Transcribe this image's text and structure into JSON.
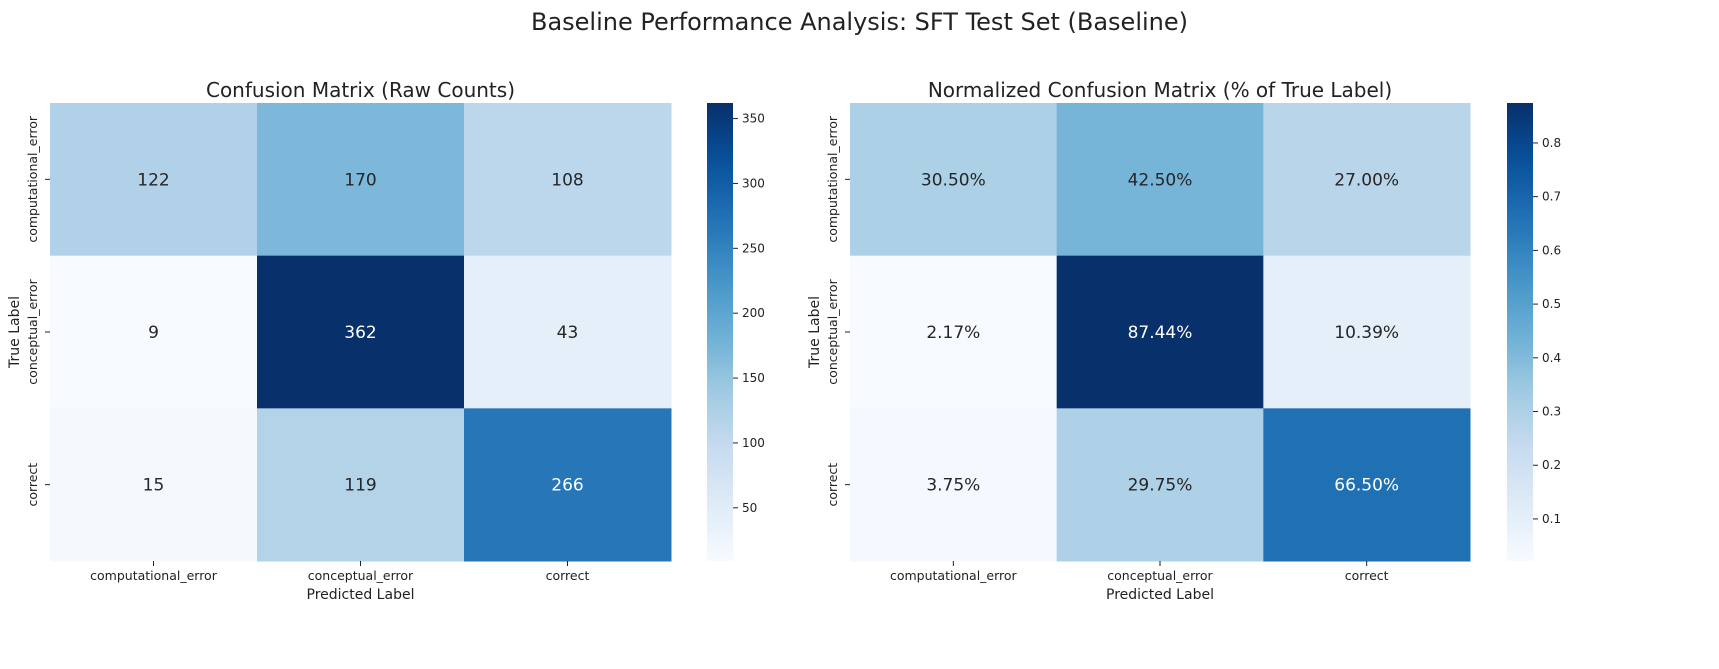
{
  "title": "Baseline Performance Analysis: SFT Test Set (Baseline)",
  "chart_data": [
    {
      "type": "heatmap",
      "title": "Confusion Matrix (Raw Counts)",
      "xlabel": "Predicted Label",
      "ylabel": "True Label",
      "x_categories": [
        "computational_error",
        "conceptual_error",
        "correct"
      ],
      "y_categories": [
        "computational_error",
        "conceptual_error",
        "correct"
      ],
      "values": [
        [
          122,
          170,
          108
        ],
        [
          9,
          362,
          43
        ],
        [
          15,
          119,
          266
        ]
      ],
      "cell_labels": [
        [
          "122",
          "170",
          "108"
        ],
        [
          "9",
          "362",
          "43"
        ],
        [
          "15",
          "119",
          "266"
        ]
      ],
      "colormap": "Blues",
      "colorbar": {
        "min": 9,
        "max": 362,
        "ticks": [
          50,
          100,
          150,
          200,
          250,
          300,
          350
        ],
        "tick_labels": [
          "50",
          "100",
          "150",
          "200",
          "250",
          "300",
          "350"
        ]
      }
    },
    {
      "type": "heatmap",
      "title": "Normalized Confusion Matrix (% of True Label)",
      "xlabel": "Predicted Label",
      "ylabel": "True Label",
      "x_categories": [
        "computational_error",
        "conceptual_error",
        "correct"
      ],
      "y_categories": [
        "computational_error",
        "conceptual_error",
        "correct"
      ],
      "values": [
        [
          0.305,
          0.425,
          0.27
        ],
        [
          0.0217,
          0.8744,
          0.1039
        ],
        [
          0.0375,
          0.2975,
          0.665
        ]
      ],
      "cell_labels": [
        [
          "30.50%",
          "42.50%",
          "27.00%"
        ],
        [
          "2.17%",
          "87.44%",
          "10.39%"
        ],
        [
          "3.75%",
          "29.75%",
          "66.50%"
        ]
      ],
      "colormap": "Blues",
      "colorbar": {
        "min": 0.0217,
        "max": 0.8744,
        "ticks": [
          0.1,
          0.2,
          0.3,
          0.4,
          0.5,
          0.6,
          0.7,
          0.8
        ],
        "tick_labels": [
          "0.1",
          "0.2",
          "0.3",
          "0.4",
          "0.5",
          "0.6",
          "0.7",
          "0.8"
        ]
      }
    }
  ]
}
